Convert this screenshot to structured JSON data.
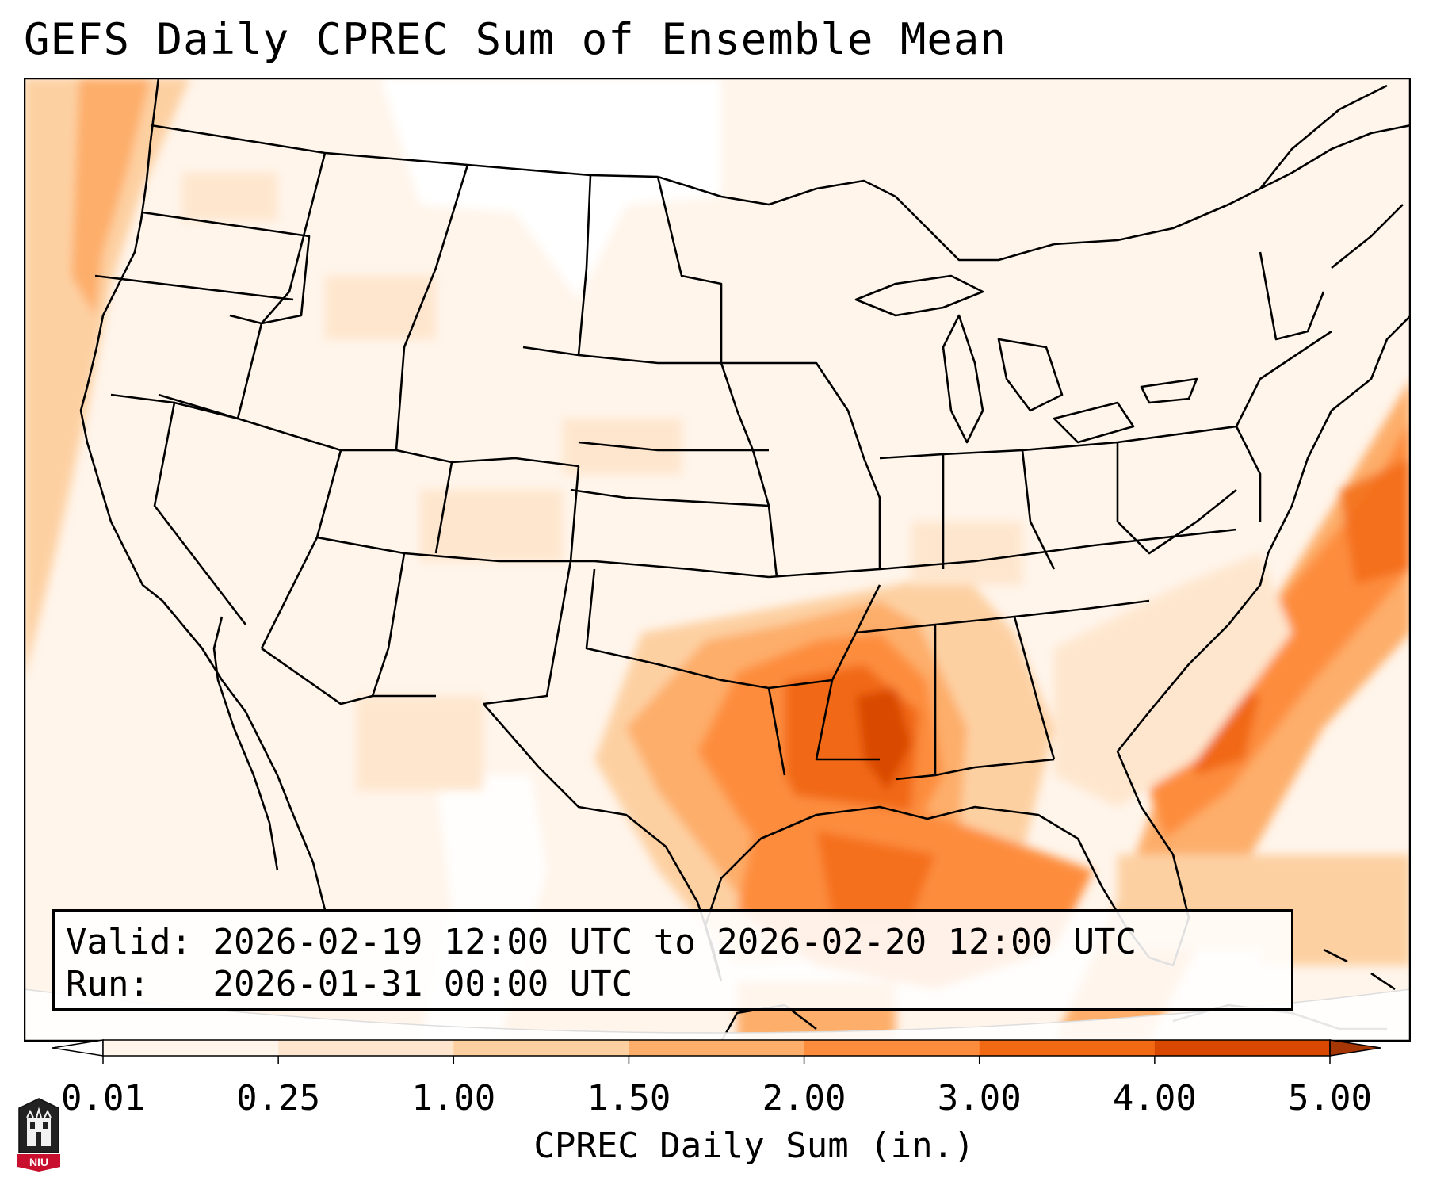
{
  "title": "GEFS Daily CPREC Sum of Ensemble Mean",
  "info": {
    "valid_label": "Valid:",
    "valid_value": "2026-02-19 12:00 UTC to 2026-02-20 12:00 UTC",
    "run_label": "Run:",
    "run_value": "2026-01-31 00:00 UTC"
  },
  "colorbar": {
    "label": "CPREC Daily Sum (in.)",
    "ticks": [
      "0.01",
      "0.25",
      "1.00",
      "1.50",
      "2.00",
      "3.00",
      "4.00",
      "5.00"
    ],
    "colors": [
      "#fff5eb",
      "#fee6ce",
      "#fdd0a2",
      "#fdae6b",
      "#fd8d3c",
      "#f16913",
      "#d94801",
      "#a63603"
    ],
    "under_color": "#ffffff",
    "over_color": "#a63603"
  },
  "logo": {
    "text": "NIU",
    "color": "#c8102e"
  },
  "colors": {
    "land_base": "#fff5eb",
    "outline": "#000000"
  }
}
